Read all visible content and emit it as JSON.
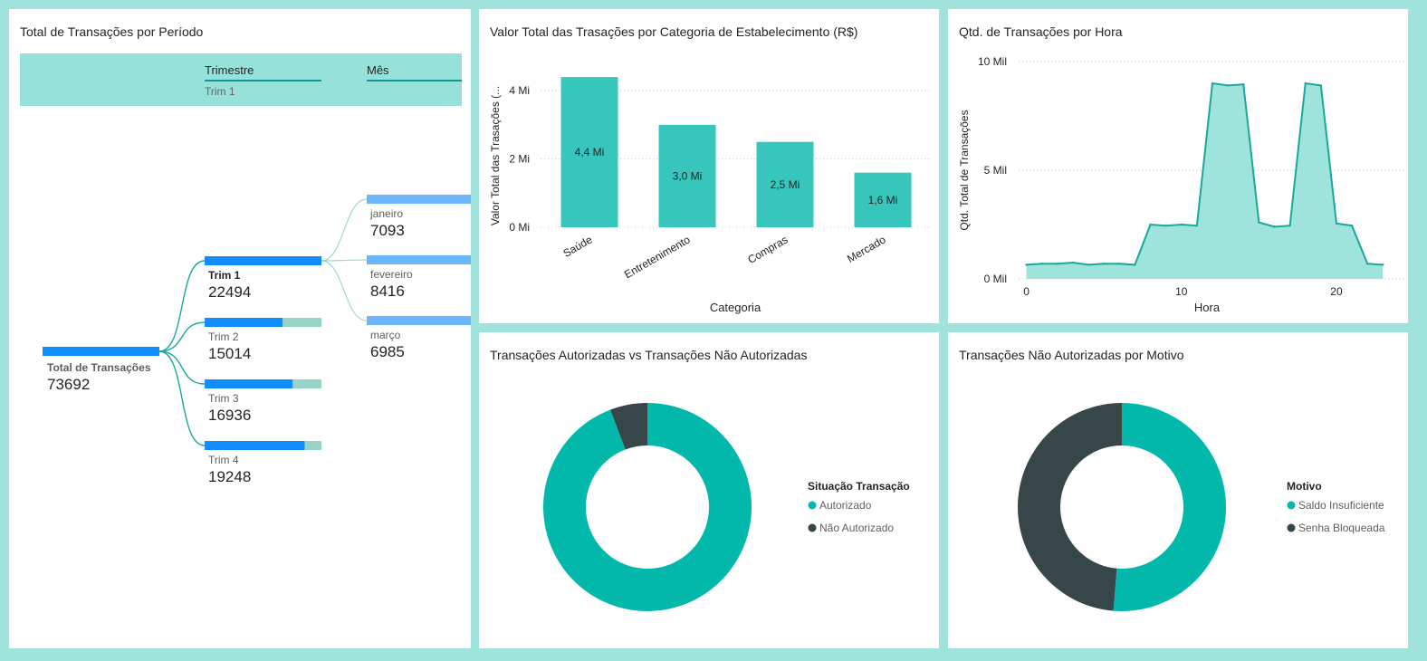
{
  "tree": {
    "title": "Total de Transações por Período",
    "header": {
      "level1": "Trimestre",
      "level2": "Mês",
      "selected": "Trim 1"
    },
    "root": {
      "label": "Total de Transações",
      "value": "73692"
    },
    "quarters": [
      {
        "label": "Trim 1",
        "value": "22494",
        "fraction": 1.0
      },
      {
        "label": "Trim 2",
        "value": "15014",
        "fraction": 0.667
      },
      {
        "label": "Trim 3",
        "value": "16936",
        "fraction": 0.753
      },
      {
        "label": "Trim 4",
        "value": "19248",
        "fraction": 0.856
      }
    ],
    "months": [
      {
        "label": "janeiro",
        "value": "7093"
      },
      {
        "label": "fevereiro",
        "value": "8416"
      },
      {
        "label": "março",
        "value": "6985"
      }
    ],
    "colors": {
      "bar": "#118dff",
      "bar_rest": "#97d3c6",
      "month_bar": "#6cb6fe",
      "link": "#1aa89c"
    }
  },
  "bar_panel": {
    "title": "Valor Total das Trasações por Categoria de Estabelecimento (R$)"
  },
  "line_panel": {
    "title": "Qtd. de Transações por Hora"
  },
  "donut1": {
    "title": "Transações Autorizadas vs Transações Não Autorizadas",
    "legend_title": "Situação Transação",
    "items": [
      {
        "label": "Autorizado",
        "value": 94.2,
        "color": "#01b8aa"
      },
      {
        "label": "Não Autorizado",
        "value": 5.8,
        "color": "#374649"
      }
    ]
  },
  "donut2": {
    "title": "Transações Não Autorizadas por Motivo",
    "legend_title": "Motivo",
    "items": [
      {
        "label": "Saldo Insuficiente",
        "value": 51.3,
        "color": "#01b8aa"
      },
      {
        "label": "Senha Bloqueada",
        "value": 48.7,
        "color": "#374649"
      }
    ]
  },
  "chart_data": [
    {
      "type": "bar",
      "title": "Valor Total das Trasações por Categoria de Estabelecimento (R$)",
      "xlabel": "Categoria",
      "ylabel": "Valor Total das Trasações (...",
      "categories": [
        "Saúde",
        "Entretenimento",
        "Compras",
        "Mercado"
      ],
      "values": [
        4.4,
        3.0,
        2.5,
        1.6
      ],
      "data_labels": [
        "4,4 Mi",
        "3,0 Mi",
        "2,5 Mi",
        "1,6 Mi"
      ],
      "yticks": [
        0,
        2,
        4
      ],
      "ytick_labels": [
        "0 Mi",
        "2 Mi",
        "4 Mi"
      ],
      "ylim": [
        0,
        4.8
      ],
      "color": "#37c6bb",
      "grid": true
    },
    {
      "type": "area",
      "title": "Qtd. de Transações por Hora",
      "xlabel": "Hora",
      "ylabel": "Qtd. Total de Transações",
      "x": [
        0,
        1,
        2,
        3,
        4,
        5,
        6,
        7,
        8,
        9,
        10,
        11,
        12,
        13,
        14,
        15,
        16,
        17,
        18,
        19,
        20,
        21,
        22,
        23
      ],
      "values": [
        650,
        700,
        700,
        750,
        650,
        700,
        700,
        650,
        2500,
        2450,
        2500,
        2450,
        9000,
        8900,
        8950,
        2600,
        2400,
        2450,
        9000,
        8900,
        2550,
        2450,
        700,
        650
      ],
      "xticks": [
        0,
        10,
        20
      ],
      "yticks": [
        0,
        5000,
        10000
      ],
      "ytick_labels": [
        "0 Mil",
        "5 Mil",
        "10 Mil"
      ],
      "xlim": [
        -0.5,
        24.5
      ],
      "ylim": [
        0,
        10000
      ],
      "line_color": "#1aa89c",
      "fill_color": "#9ee3dc",
      "grid": true
    },
    {
      "type": "pie",
      "title": "Transações Autorizadas vs Transações Não Autorizadas",
      "legend_title": "Situação Transação",
      "categories": [
        "Autorizado",
        "Não Autorizado"
      ],
      "values": [
        94.2,
        5.8
      ]
    },
    {
      "type": "pie",
      "title": "Transações Não Autorizadas por Motivo",
      "legend_title": "Motivo",
      "categories": [
        "Saldo Insuficiente",
        "Senha Bloqueada"
      ],
      "values": [
        51.3,
        48.7
      ]
    }
  ]
}
